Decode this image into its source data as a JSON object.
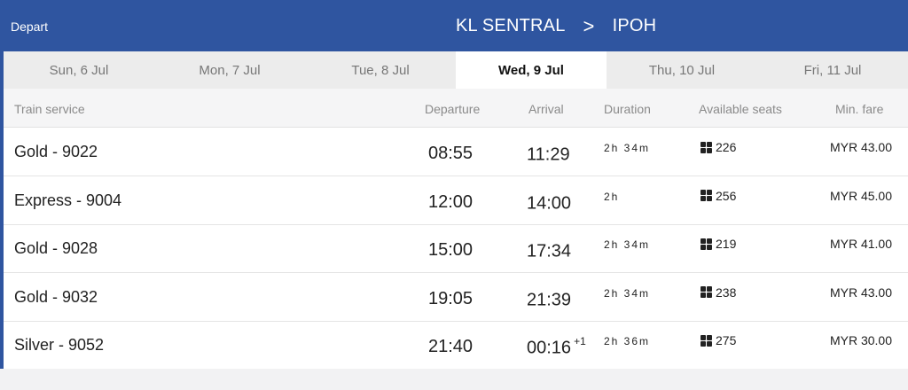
{
  "header": {
    "direction_label": "Depart",
    "origin": "KL SENTRAL",
    "separator": ">",
    "destination": "IPOH",
    "background_color": "#2f55a0"
  },
  "date_tabs": [
    {
      "label": "Sun, 6 Jul",
      "active": false
    },
    {
      "label": "Mon, 7 Jul",
      "active": false
    },
    {
      "label": "Tue, 8 Jul",
      "active": false
    },
    {
      "label": "Wed, 9 Jul",
      "active": true
    },
    {
      "label": "Thu, 10 Jul",
      "active": false
    },
    {
      "label": "Fri, 11 Jul",
      "active": false
    }
  ],
  "columns": {
    "service": "Train service",
    "departure": "Departure",
    "arrival": "Arrival",
    "duration": "Duration",
    "seats": "Available seats",
    "fare": "Min. fare"
  },
  "trains": [
    {
      "service": "Gold - 9022",
      "departure": "08:55",
      "arrival": "11:29",
      "next_day": "",
      "duration": "2h 34m",
      "seats": "226",
      "fare": "MYR 43.00"
    },
    {
      "service": "Express - 9004",
      "departure": "12:00",
      "arrival": "14:00",
      "next_day": "",
      "duration": "2h",
      "seats": "256",
      "fare": "MYR 45.00"
    },
    {
      "service": "Gold - 9028",
      "departure": "15:00",
      "arrival": "17:34",
      "next_day": "",
      "duration": "2h 34m",
      "seats": "219",
      "fare": "MYR 41.00"
    },
    {
      "service": "Gold - 9032",
      "departure": "19:05",
      "arrival": "21:39",
      "next_day": "",
      "duration": "2h 34m",
      "seats": "238",
      "fare": "MYR 43.00"
    },
    {
      "service": "Silver - 9052",
      "departure": "21:40",
      "arrival": "00:16",
      "next_day": "+1",
      "duration": "2h 36m",
      "seats": "275",
      "fare": "MYR 30.00"
    }
  ],
  "icons": {
    "seat": "seat-grid-icon",
    "separator": "chevron-right-icon"
  }
}
